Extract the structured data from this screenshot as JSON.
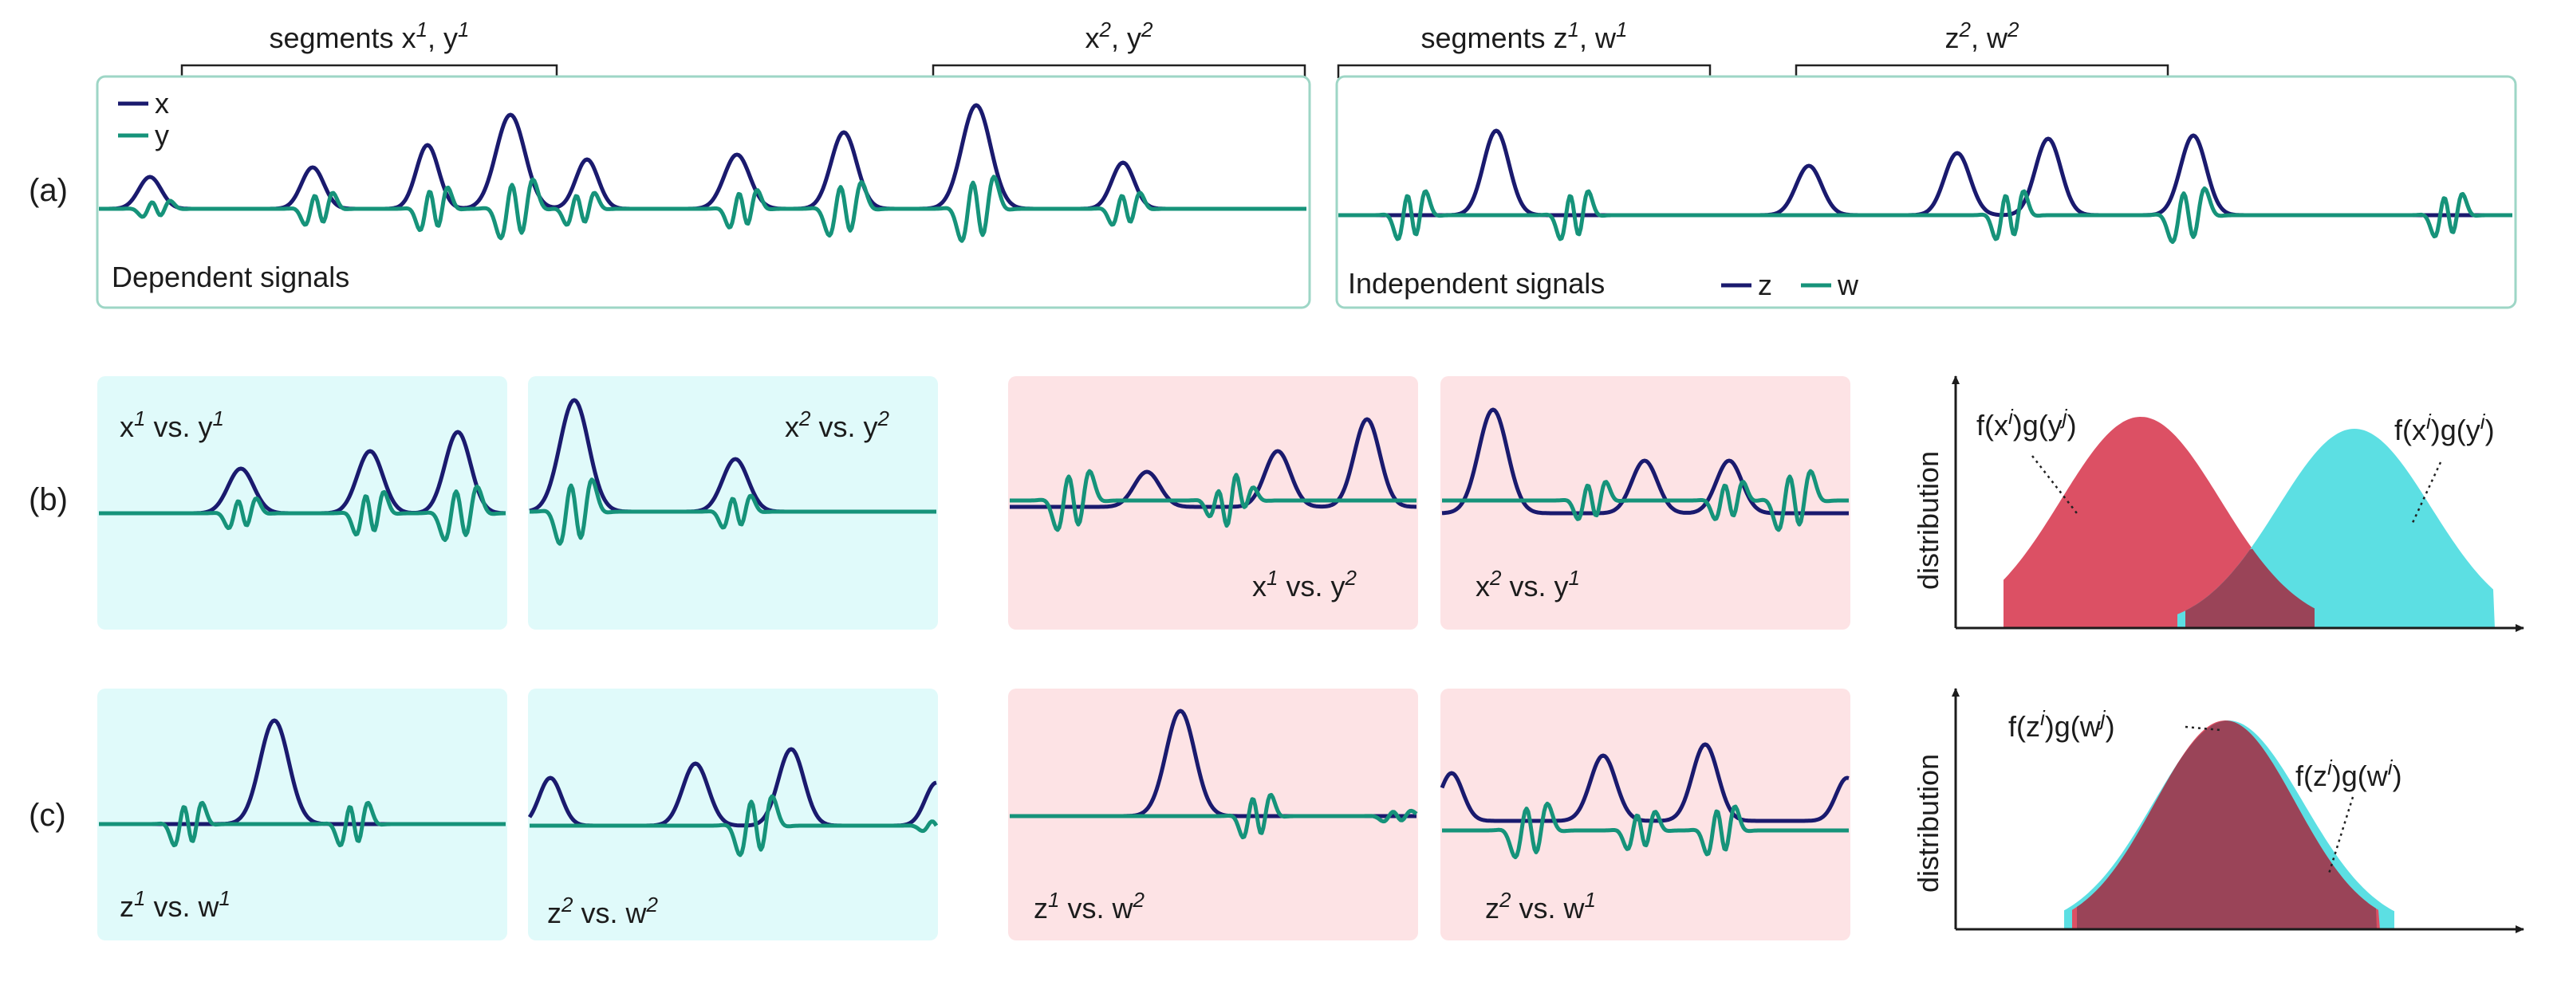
{
  "colors": {
    "x": "#1a1a6e",
    "y": "#16937a",
    "panel_border": "#9ed6c6",
    "dep_bg": "#e0fafa",
    "indep_bg": "#fde3e5",
    "dist_red": "#dc5064",
    "dist_cyan": "#5cdfe3",
    "dist_overlap": "#9a4458"
  },
  "row_labels": {
    "a": "(a)",
    "b": "(b)",
    "c": "(c)"
  },
  "panel_a": {
    "dependent_caption": "Dependent signals",
    "independent_caption": "Independent signals",
    "legend_left": {
      "x": "x",
      "y": "y"
    },
    "legend_right": {
      "z": "z",
      "w": "w"
    },
    "brackets": [
      {
        "text": "segments x",
        "sup": "1",
        "text2": ", y",
        "sup2": "1"
      },
      {
        "text": "x",
        "sup": "2",
        "text2": ", y",
        "sup2": "2"
      },
      {
        "text": "segments z",
        "sup": "1",
        "text2": ", w",
        "sup2": "1"
      },
      {
        "text": "z",
        "sup": "2",
        "text2": ", w",
        "sup2": "2"
      }
    ]
  },
  "panel_b": {
    "tiles": [
      {
        "text": "x",
        "sup": "1",
        "text2": " vs. y",
        "sup2": "1"
      },
      {
        "text": "x",
        "sup": "2",
        "text2": " vs. y",
        "sup2": "2"
      },
      {
        "text": "x",
        "sup": "1",
        "text2": " vs. y",
        "sup2": "2"
      },
      {
        "text": "x",
        "sup": "2",
        "text2": " vs. y",
        "sup2": "1"
      }
    ],
    "dist_ylabel": "distribution",
    "dist_label_left": {
      "text": "f(x",
      "sup": "i",
      "text2": ")g(y",
      "sup2": "j",
      "text3": ")"
    },
    "dist_label_right": {
      "text": "f(x",
      "sup": "i",
      "text2": ")g(y",
      "sup2": "i",
      "text3": ")"
    }
  },
  "panel_c": {
    "tiles": [
      {
        "text": "z",
        "sup": "1",
        "text2": " vs. w",
        "sup2": "1"
      },
      {
        "text": "z",
        "sup": "2",
        "text2": " vs. w",
        "sup2": "2"
      },
      {
        "text": "z",
        "sup": "1",
        "text2": " vs. w",
        "sup2": "2"
      },
      {
        "text": "z",
        "sup": "2",
        "text2": " vs. w",
        "sup2": "1"
      }
    ],
    "dist_ylabel": "distribution",
    "dist_label_left": {
      "text": "f(z",
      "sup": "i",
      "text2": ")g(w",
      "sup2": "j",
      "text3": ")"
    },
    "dist_label_right": {
      "text": "f(z",
      "sup": "i",
      "text2": ")g(w",
      "sup2": "i",
      "text3": ")"
    }
  }
}
